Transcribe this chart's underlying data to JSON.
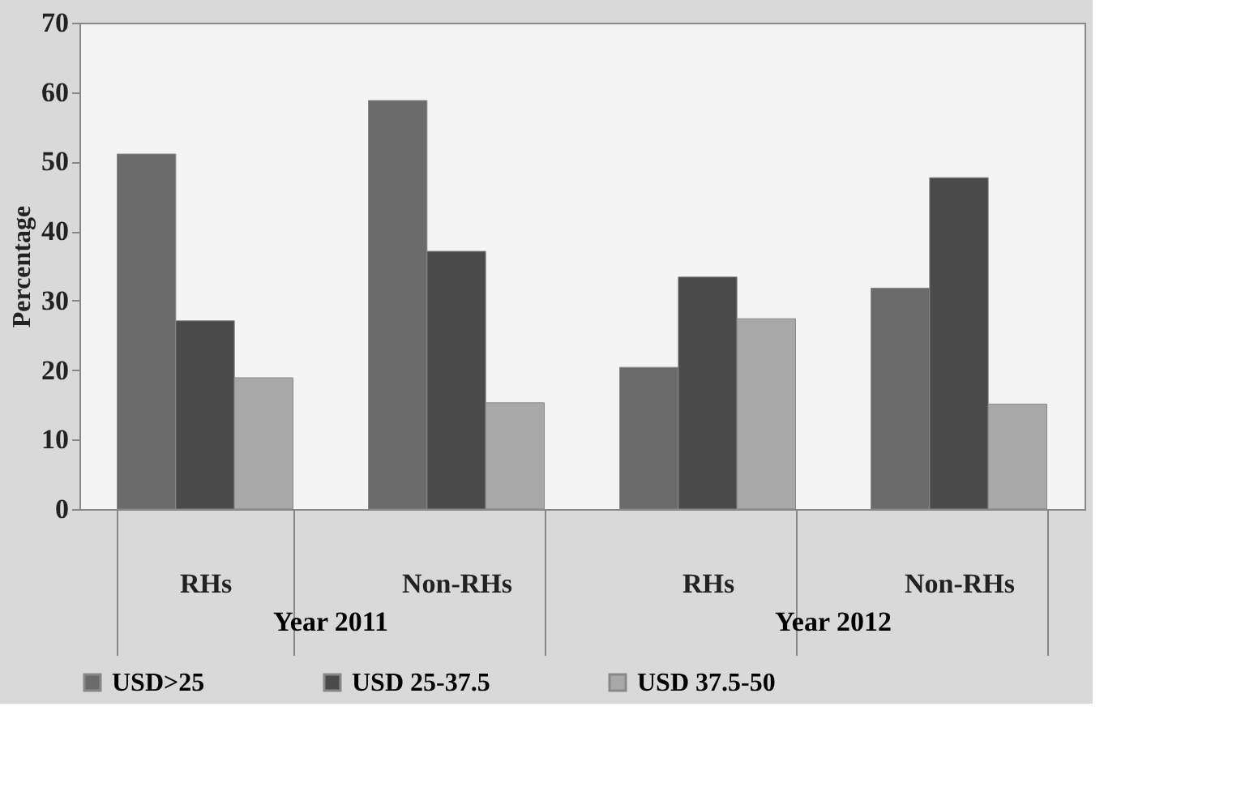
{
  "chart_data": {
    "type": "bar",
    "ylabel": "Percentage",
    "categories": [
      "RHs",
      "Non-RHs",
      "RHs",
      "Non-RHs"
    ],
    "series": [
      {
        "name": "USD>25",
        "color": "#6b6b6b",
        "values": [
          51.1,
          58.8,
          20.4,
          31.8
        ]
      },
      {
        "name": "USD 25-37.5",
        "color": "#4a4a4a",
        "values": [
          27.1,
          37.1,
          33.4,
          47.7
        ]
      },
      {
        "name": "USD 37.5-50",
        "color": "#a8a8a8",
        "values": [
          18.9,
          15.3,
          27.4,
          15.1
        ]
      }
    ],
    "annotations": [
      "Year 2011",
      "Year 2012"
    ],
    "ylim": [
      0,
      70
    ],
    "yticks": [
      0,
      10,
      20,
      30,
      40,
      50,
      60,
      70
    ],
    "grid": false,
    "legend": "bottom"
  }
}
